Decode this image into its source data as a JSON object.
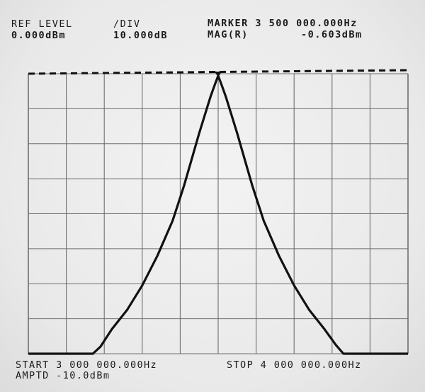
{
  "header": {
    "ref_level_label": "REF LEVEL",
    "ref_level_value": "0.000dBm",
    "div_label": "/DIV",
    "div_value": "10.000dB",
    "marker_line": "MARKER 3 500 000.000Hz",
    "mag_label": "MAG(R)",
    "mag_value": "-0.603dBm"
  },
  "footer": {
    "start": "START 3 000 000.000Hz",
    "amptd": "AMPTD -10.0dBm",
    "stop": "STOP 4 000 000.000Hz"
  },
  "colors": {
    "trace": "#111111",
    "grid": "#6e6e6e",
    "background": "#ececec"
  },
  "chart_data": {
    "type": "line",
    "title": "",
    "xlabel": "",
    "ylabel": "",
    "x_unit": "MHz",
    "y_unit": "dBm",
    "xlim": [
      3.0,
      4.0
    ],
    "ylim": [
      -80,
      0
    ],
    "x_divisions": 10,
    "y_divisions": 8,
    "grid": true,
    "reference_line": 0,
    "marker": {
      "x": 3.5,
      "y": -0.603
    },
    "series": [
      {
        "x": [
          3.0,
          3.17,
          3.19,
          3.22,
          3.26,
          3.3,
          3.34,
          3.38,
          3.41,
          3.43,
          3.45,
          3.47,
          3.48,
          3.49,
          3.495,
          3.5,
          3.505,
          3.51,
          3.52,
          3.53,
          3.55,
          3.57,
          3.59,
          3.62,
          3.66,
          3.7,
          3.74,
          3.78,
          3.81,
          3.83,
          4.0
        ],
        "y": [
          -80,
          -80,
          -78,
          -73,
          -67.5,
          -60.5,
          -52,
          -42,
          -32,
          -24.5,
          -17,
          -10,
          -6.5,
          -3.5,
          -2,
          -0.6,
          -2,
          -3.5,
          -6.5,
          -10,
          -17,
          -24.5,
          -32,
          -42,
          -52,
          -60.5,
          -67.5,
          -73,
          -77.5,
          -80,
          -80
        ]
      }
    ]
  }
}
